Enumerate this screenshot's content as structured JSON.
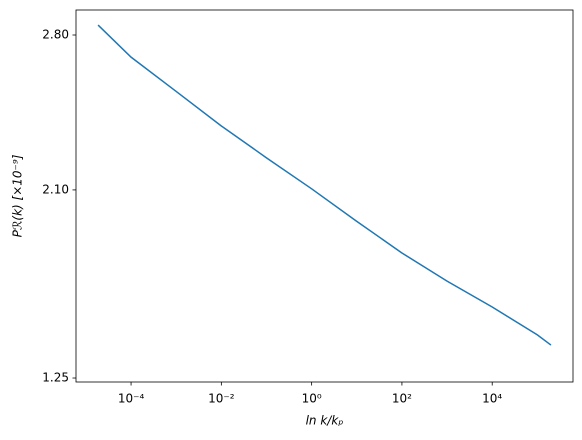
{
  "chart_data": {
    "type": "line",
    "x_label": "ln k/kₚ",
    "y_label": "Pℛ(k)  [×10⁻⁹]",
    "x_scale": "log",
    "xlim": [
      6.03e-06,
      616000
    ],
    "ylim": [
      1.232,
      2.913
    ],
    "xticks": [
      {
        "value": 0.0001,
        "label": "10⁻⁴"
      },
      {
        "value": 0.01,
        "label": "10⁻²"
      },
      {
        "value": 1,
        "label": "10⁰"
      },
      {
        "value": 100,
        "label": "10²"
      },
      {
        "value": 10000,
        "label": "10⁴"
      }
    ],
    "yticks": [
      {
        "value": 2.8,
        "label": "2.80"
      },
      {
        "value": 2.1,
        "label": "2.10"
      },
      1.25
    ],
    "grid": false,
    "x": [
      1.86e-05,
      0.0001,
      0.001,
      0.01,
      0.1,
      1,
      10,
      100,
      1000,
      10000,
      100000,
      200000
    ],
    "series": [
      {
        "color": "#1f77b4",
        "values": [
          2.845,
          2.7,
          2.545,
          2.389,
          2.245,
          2.105,
          1.958,
          1.815,
          1.688,
          1.571,
          1.445,
          1.399
        ]
      }
    ]
  }
}
